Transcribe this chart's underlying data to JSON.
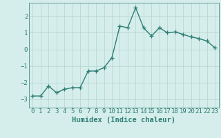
{
  "x": [
    0,
    1,
    2,
    3,
    4,
    5,
    6,
    7,
    8,
    9,
    10,
    11,
    12,
    13,
    14,
    15,
    16,
    17,
    18,
    19,
    20,
    21,
    22,
    23
  ],
  "y": [
    -2.8,
    -2.8,
    -2.2,
    -2.6,
    -2.4,
    -2.3,
    -2.3,
    -1.3,
    -1.3,
    -1.1,
    -0.5,
    1.4,
    1.3,
    2.5,
    1.3,
    0.8,
    1.3,
    1.0,
    1.05,
    0.9,
    0.75,
    0.65,
    0.5,
    0.1
  ],
  "color": "#2d7d74",
  "bg_color": "#d6eeeb",
  "grid_color": "#b8d8d4",
  "xlabel": "Humidex (Indice chaleur)",
  "ylim": [
    -3.5,
    2.8
  ],
  "xlim": [
    -0.5,
    23.5
  ],
  "yticks": [
    -3,
    -2,
    -1,
    0,
    1,
    2
  ],
  "marker": "+",
  "markersize": 4,
  "linewidth": 1.0,
  "xlabel_fontsize": 7.5,
  "tick_fontsize": 6.5,
  "spine_color": "#5a9a94"
}
